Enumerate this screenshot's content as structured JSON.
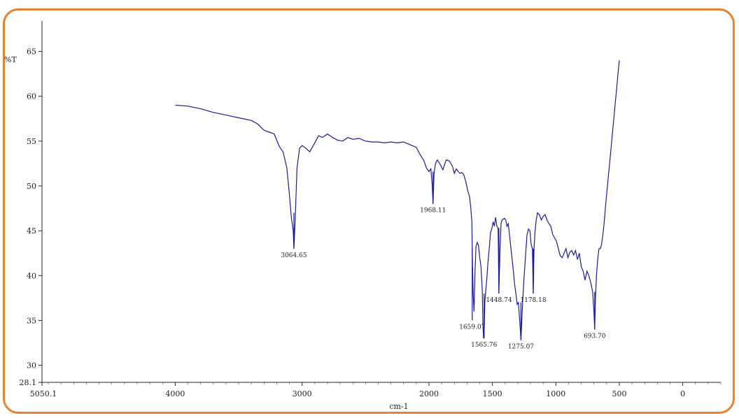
{
  "chart_data": {
    "type": "line",
    "title": "",
    "xlabel": "cm-1",
    "ylabel": "%T",
    "xlim": [
      5050.1,
      -300
    ],
    "ylim": [
      28.1,
      68
    ],
    "x_ticks": [
      "5050.1",
      "4000",
      "3000",
      "2000",
      "1500",
      "1000",
      "500",
      "0"
    ],
    "y_ticks": [
      "28.1",
      "30",
      "35",
      "40",
      "45",
      "50",
      "55",
      "60",
      "65"
    ],
    "line_color": "#1a1aa0",
    "series": [
      {
        "x": [
          4000,
          3900,
          3800,
          3700,
          3600,
          3500,
          3400,
          3350,
          3300,
          3260,
          3220,
          3180,
          3150,
          3120,
          3100,
          3085,
          3070,
          3064.65,
          3055,
          3040,
          3020,
          3000,
          2970,
          2940,
          2900,
          2870,
          2840,
          2800,
          2760,
          2720,
          2680,
          2640,
          2600,
          2550,
          2500,
          2450,
          2400,
          2350,
          2300,
          2250,
          2200,
          2150,
          2100,
          2070,
          2040,
          2020,
          2000,
          1985,
          1975,
          1968.11,
          1960,
          1950,
          1935,
          1915,
          1890,
          1865,
          1840,
          1815,
          1800,
          1785,
          1770,
          1755,
          1740,
          1725,
          1710,
          1695,
          1680,
          1670,
          1662,
          1659.07,
          1652,
          1645,
          1638,
          1630,
          1620,
          1610,
          1600,
          1590,
          1580,
          1575,
          1570,
          1565.76,
          1560,
          1553,
          1545,
          1535,
          1525,
          1515,
          1505,
          1495,
          1485,
          1475,
          1465,
          1455,
          1448.74,
          1440,
          1432,
          1424,
          1416,
          1405,
          1395,
          1385,
          1375,
          1365,
          1355,
          1345,
          1335,
          1325,
          1315,
          1305,
          1295,
          1285,
          1280,
          1275.07,
          1270,
          1262,
          1252,
          1240,
          1228,
          1216,
          1204,
          1195,
          1185,
          1178.18,
          1172,
          1165,
          1155,
          1145,
          1130,
          1115,
          1100,
          1085,
          1070,
          1055,
          1040,
          1025,
          1010,
          995,
          980,
          965,
          950,
          935,
          920,
          905,
          890,
          875,
          860,
          845,
          830,
          815,
          800,
          785,
          770,
          755,
          740,
          725,
          710,
          700,
          693.7,
          688,
          680,
          670,
          660,
          650,
          640,
          630,
          620,
          610,
          600,
          590,
          580,
          570,
          560,
          550,
          540,
          530,
          520,
          510,
          500
        ],
        "y": [
          59.0,
          58.9,
          58.6,
          58.2,
          57.9,
          57.6,
          57.3,
          56.9,
          56.2,
          56.0,
          55.8,
          54.4,
          53.8,
          52.0,
          49.0,
          46.5,
          45.0,
          43.0,
          46.0,
          52.0,
          54.2,
          54.5,
          54.2,
          53.8,
          54.8,
          55.6,
          55.4,
          55.8,
          55.4,
          55.1,
          55.0,
          55.4,
          55.2,
          55.3,
          55.0,
          54.9,
          54.9,
          54.8,
          54.9,
          54.8,
          54.9,
          54.6,
          54.3,
          53.5,
          52.8,
          52.0,
          51.6,
          51.9,
          50.2,
          48.0,
          51.4,
          52.4,
          52.9,
          52.5,
          51.8,
          52.9,
          52.8,
          52.2,
          51.4,
          51.9,
          51.6,
          51.4,
          51.5,
          51.2,
          50.5,
          49.5,
          48.8,
          47.5,
          46.0,
          43.0,
          38.0,
          36.0,
          40.0,
          43.2,
          43.7,
          43.4,
          42.0,
          41.0,
          38.5,
          34.5,
          33.0,
          33.2,
          37.0,
          38.2,
          39.5,
          41.5,
          43.0,
          44.8,
          45.2,
          46.0,
          45.5,
          46.5,
          45.5,
          45.3,
          38.0,
          43.0,
          45.8,
          46.2,
          46.3,
          46.4,
          46.2,
          45.5,
          45.8,
          44.5,
          43.2,
          41.8,
          40.5,
          39.0,
          38.0,
          36.8,
          37.0,
          35.0,
          34.0,
          32.8,
          34.5,
          37.0,
          39.5,
          42.0,
          44.5,
          45.2,
          45.0,
          43.5,
          43.0,
          38.0,
          43.0,
          44.8,
          46.2,
          47.0,
          46.8,
          46.2,
          46.6,
          46.8,
          46.2,
          45.8,
          45.5,
          44.6,
          44.2,
          43.8,
          43.0,
          42.2,
          42.0,
          42.5,
          43.0,
          42.0,
          42.6,
          42.8,
          42.3,
          42.8,
          41.8,
          42.5,
          41.0,
          40.5,
          39.5,
          40.5,
          40.0,
          39.2,
          38.2,
          36.0,
          34.0,
          37.5,
          40.0,
          41.8,
          43.0,
          43.0,
          43.5,
          44.5,
          45.8,
          47.5,
          49.0,
          50.5,
          52.0,
          53.5,
          55.0,
          56.5,
          58.0,
          59.5,
          61.0,
          62.5,
          64.0
        ]
      }
    ],
    "peak_labels": [
      {
        "x": 3064.65,
        "y_top": 43.0,
        "y_bottom": 47.0,
        "text": "3064.65"
      },
      {
        "x": 1968.11,
        "y_top": 48.0,
        "y_bottom": 51.6,
        "text": "1968.11"
      },
      {
        "x": 1659.07,
        "y_top": 35.0,
        "y_bottom": 43.0,
        "text": "1659.07"
      },
      {
        "x": 1565.76,
        "y_top": 33.0,
        "y_bottom": 38.0,
        "text": "1565.76"
      },
      {
        "x": 1448.74,
        "y_top": 38.0,
        "y_bottom": 45.3,
        "text": "1448.74"
      },
      {
        "x": 1275.07,
        "y_top": 32.8,
        "y_bottom": 37.0,
        "text": "1275.07"
      },
      {
        "x": 1178.18,
        "y_top": 38.0,
        "y_bottom": 43.0,
        "text": "1178.18"
      },
      {
        "x": 693.7,
        "y_top": 34.0,
        "y_bottom": 38.2,
        "text": "693.70"
      }
    ]
  }
}
